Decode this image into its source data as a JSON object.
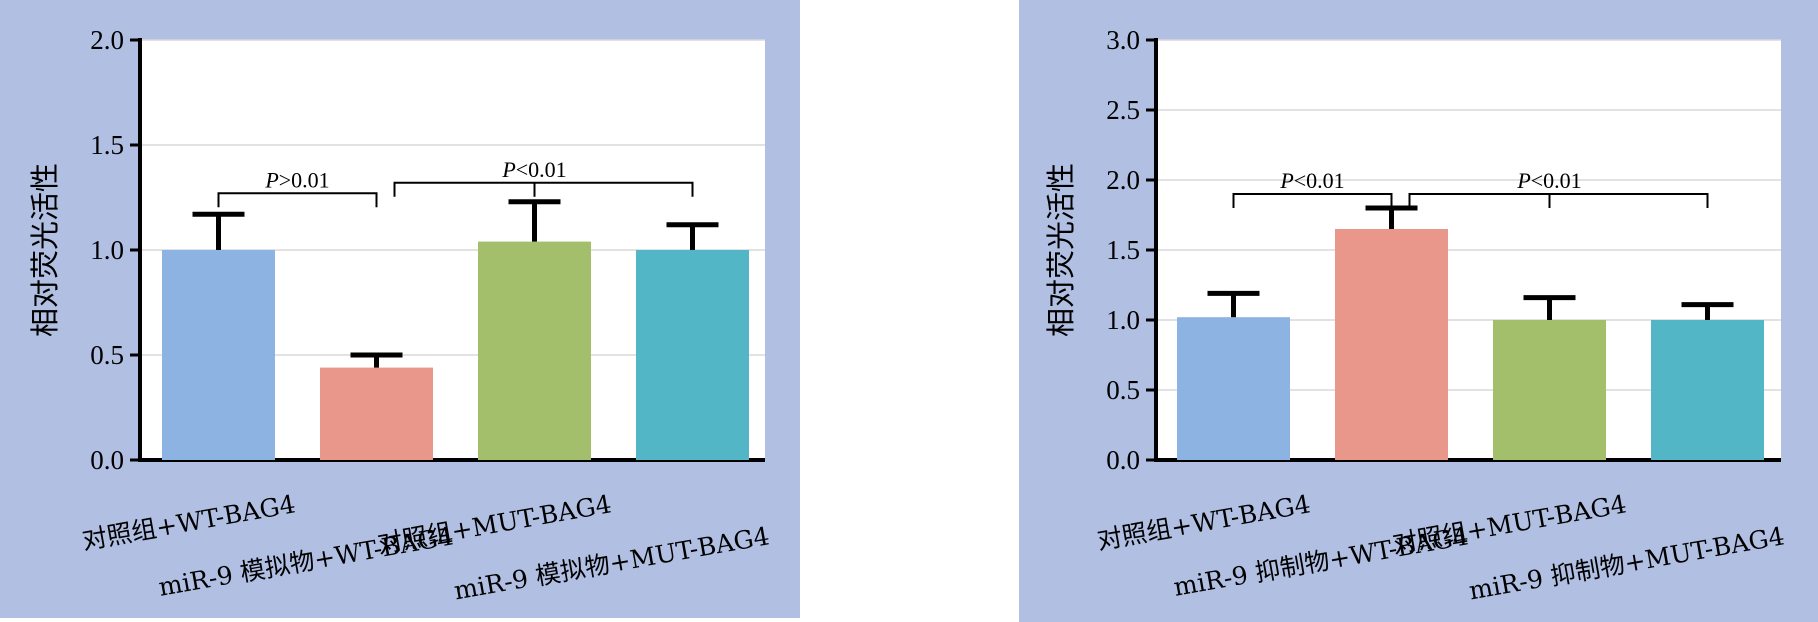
{
  "chart_data": [
    {
      "type": "bar",
      "ylabel": "相对荧光活性",
      "ylim": [
        0,
        2.0
      ],
      "yticks": [
        "0.0",
        "0.5",
        "1.0",
        "1.5",
        "2.0"
      ],
      "categories": [
        "对照组+WT-BAG4",
        "miR-9 模拟物+WT-BAG4",
        "对照组+MUT-BAG4",
        "miR-9 模拟物+MUT-BAG4"
      ],
      "values": [
        1.0,
        0.44,
        1.04,
        1.0
      ],
      "errors": [
        0.17,
        0.06,
        0.19,
        0.12
      ],
      "colors": [
        "#8db3e2",
        "#e8978a",
        "#a3bf6b",
        "#52b6c6"
      ],
      "grid": true,
      "annotations": [
        {
          "text_italic": "P",
          "text_rest": ">0.01",
          "from": 0,
          "to": [
            1
          ],
          "level": 1.27
        },
        {
          "text_italic": "P",
          "text_rest": "<0.01",
          "from": 2,
          "to": [
            1,
            3
          ],
          "level": 1.32
        }
      ]
    },
    {
      "type": "bar",
      "ylabel": "相对荧光活性",
      "ylim": [
        0,
        3.0
      ],
      "yticks": [
        "0.0",
        "0.5",
        "1.0",
        "1.5",
        "2.0",
        "2.5",
        "3.0"
      ],
      "categories": [
        "对照组+WT-BAG4",
        "miR-9 抑制物+WT-BAG4",
        "对照组+MUT-BAG4",
        "miR-9 抑制物+MUT-BAG4"
      ],
      "values": [
        1.02,
        1.65,
        1.0,
        1.0
      ],
      "errors": [
        0.17,
        0.15,
        0.16,
        0.11
      ],
      "colors": [
        "#8db3e2",
        "#e8978a",
        "#a3bf6b",
        "#52b6c6"
      ],
      "grid": true,
      "annotations": [
        {
          "text_italic": "P",
          "text_rest": "<0.01",
          "from": 0,
          "to": [
            1
          ],
          "level": 1.9
        },
        {
          "text_italic": "P",
          "text_rest": "<0.01",
          "from": 2,
          "to": [
            1,
            3
          ],
          "level": 1.9
        }
      ]
    }
  ]
}
